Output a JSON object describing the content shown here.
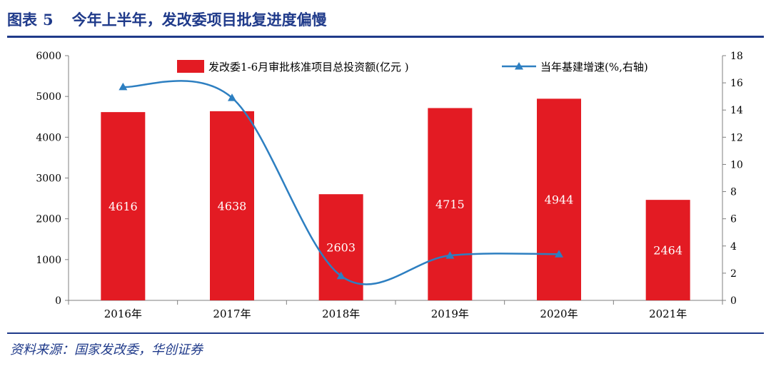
{
  "figure": {
    "title_prefix": "图表",
    "title_number": "5",
    "title_text": "今年上半年，发改委项目批复进度偏慢",
    "source": "资料来源：国家发改委，华创证券"
  },
  "colors": {
    "bar": "#e31b23",
    "line": "#2d7fc1",
    "title": "#1f3a8a",
    "axis": "#7f7f7f"
  },
  "chart_data": {
    "type": "bar+line",
    "categories": [
      "2016年",
      "2017年",
      "2018年",
      "2019年",
      "2020年",
      "2021年"
    ],
    "series": [
      {
        "name": "发改委1-6月审批核准项目总投资额(亿元 )",
        "type": "bar",
        "axis": "left",
        "values": [
          4616,
          4638,
          2603,
          4715,
          4944,
          2464
        ],
        "data_labels": [
          "4616",
          "4638",
          "2603",
          "4715",
          "4944",
          "2464"
        ]
      },
      {
        "name": "当年基建增速(%,右轴)",
        "type": "line",
        "axis": "right",
        "values": [
          15.7,
          14.9,
          1.8,
          3.3,
          3.4,
          null
        ]
      }
    ],
    "y_left": {
      "min": 0,
      "max": 6000,
      "ticks": [
        "0",
        "1000",
        "2000",
        "3000",
        "4000",
        "5000",
        "6000"
      ]
    },
    "y_right": {
      "min": 0,
      "max": 18,
      "ticks": [
        "0",
        "2",
        "4",
        "6",
        "8",
        "10",
        "12",
        "14",
        "16",
        "18"
      ]
    },
    "legend_position": "top"
  }
}
